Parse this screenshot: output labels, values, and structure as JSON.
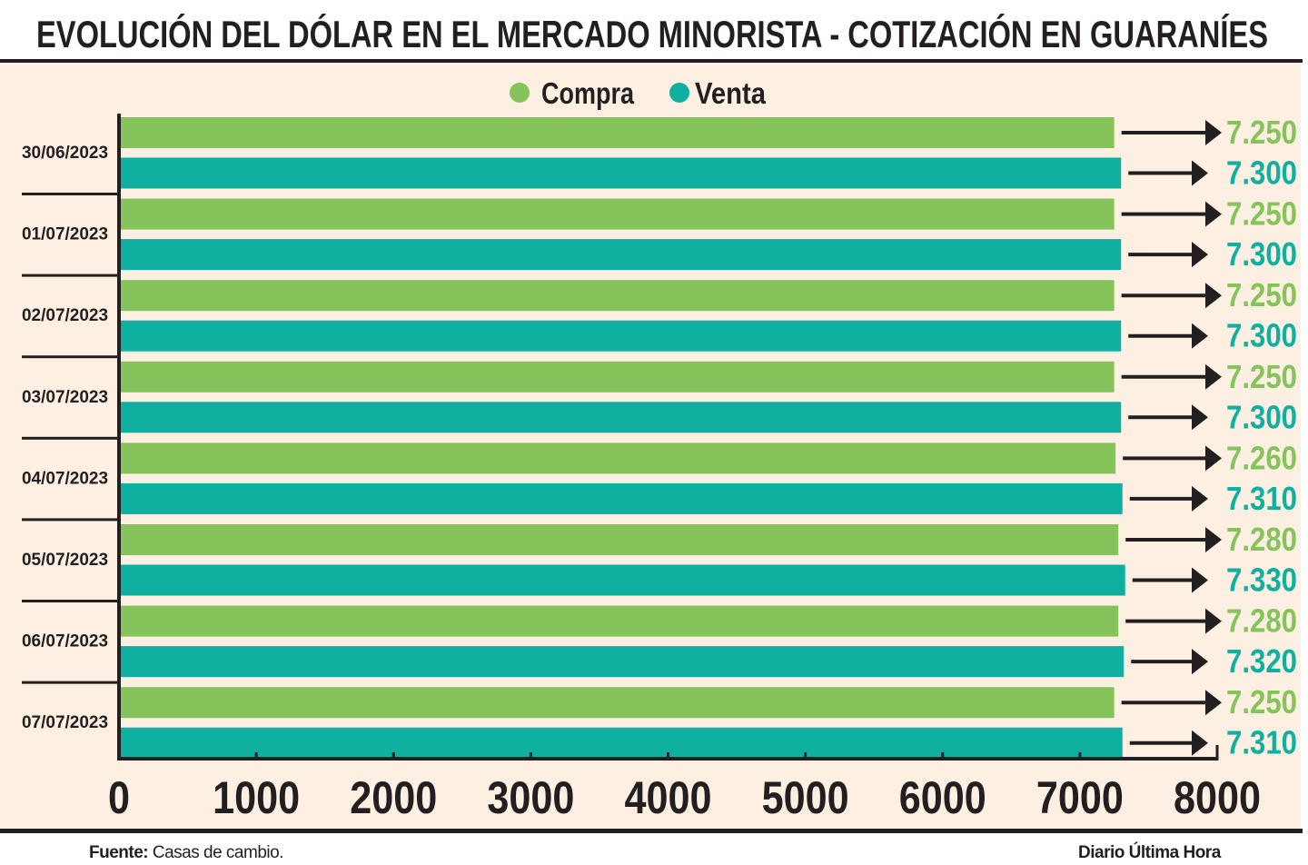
{
  "chart_data": {
    "type": "bar",
    "orientation": "horizontal",
    "title": "EVOLUCIÓN DEL DÓLAR EN EL MERCADO MINORISTA - COTIZACIÓN EN GUARANÍES",
    "categories": [
      "30/06/2023",
      "01/07/2023",
      "02/07/2023",
      "03/07/2023",
      "04/07/2023",
      "05/07/2023",
      "06/07/2023",
      "07/07/2023"
    ],
    "series": [
      {
        "name": "Compra",
        "color": "#84c45a",
        "values": [
          7250,
          7250,
          7250,
          7250,
          7260,
          7280,
          7280,
          7250
        ],
        "labels": [
          "7.250",
          "7.250",
          "7.250",
          "7.250",
          "7.260",
          "7.280",
          "7.280",
          "7.250"
        ]
      },
      {
        "name": "Venta",
        "color": "#10b0a0",
        "values": [
          7300,
          7300,
          7300,
          7300,
          7310,
          7330,
          7320,
          7310
        ],
        "labels": [
          "7.300",
          "7.300",
          "7.300",
          "7.300",
          "7.310",
          "7.330",
          "7.320",
          "7.310"
        ]
      }
    ],
    "xlim": [
      0,
      8000
    ],
    "xticks": [
      "0",
      "1000",
      "2000",
      "3000",
      "4000",
      "5000",
      "6000",
      "7000",
      "8000"
    ],
    "legend_position": "top-center",
    "grid": false,
    "background": "#fdf0e2"
  },
  "footer": {
    "source_label": "Fuente:",
    "source_text": " Casas de cambio.",
    "credit": "Diario Última Hora"
  }
}
